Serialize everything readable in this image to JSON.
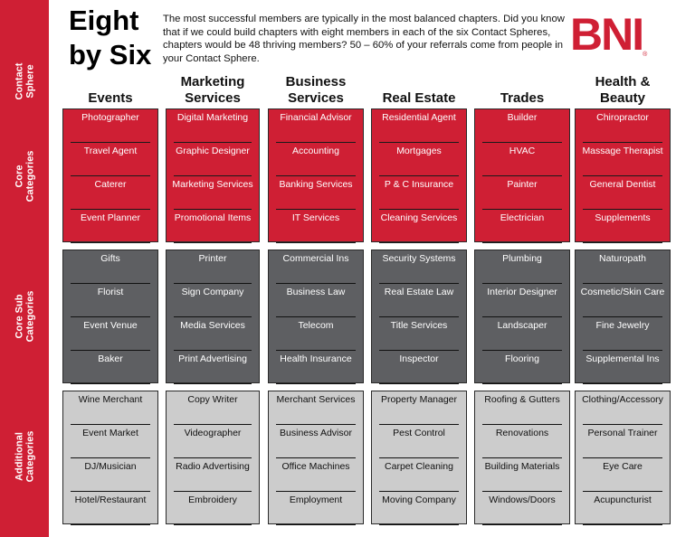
{
  "header": {
    "title_line1": "Eight",
    "title_line2": "by Six",
    "intro": "The most successful members are typically in the most balanced chapters. Did you know that if we could build chapters with eight members in each of the six Contact Spheres, chapters would be 48 thriving members? 50 – 60% of your referrals come from people in your Contact Sphere.",
    "logo": "BNI",
    "logo_mark": "®"
  },
  "colors": {
    "brand_red": "#cf1f34",
    "sub_gray": "#5e5f62",
    "additional_gray": "#cccccc"
  },
  "rows": {
    "contact_sphere": "Contact\nSphere",
    "core": "Core\nCategories",
    "sub": "Core Sub\nCategories",
    "additional": "Additional\nCategories"
  },
  "columns": [
    {
      "name": "Events",
      "core": [
        "Photographer",
        "Travel Agent",
        "Caterer",
        "Event Planner"
      ],
      "sub": [
        "Gifts",
        "Florist",
        "Event Venue",
        "Baker"
      ],
      "additional": [
        "Wine Merchant",
        "Event Market",
        "DJ/Musician",
        "Hotel/Restaurant"
      ]
    },
    {
      "name": "Marketing\nServices",
      "core": [
        "Digital Marketing",
        "Graphic Designer",
        "Marketing Services",
        "Promotional Items"
      ],
      "sub": [
        "Printer",
        "Sign Company",
        "Media Services",
        "Print Advertising"
      ],
      "additional": [
        "Copy Writer",
        "Videographer",
        "Radio Advertising",
        "Embroidery"
      ]
    },
    {
      "name": "Business\nServices",
      "core": [
        "Financial Advisor",
        "Accounting",
        "Banking Services",
        "IT Services"
      ],
      "sub": [
        "Commercial Ins",
        "Business Law",
        "Telecom",
        "Health Insurance"
      ],
      "additional": [
        "Merchant Services",
        "Business Advisor",
        "Office Machines",
        "Employment"
      ]
    },
    {
      "name": "Real Estate",
      "core": [
        "Residential Agent",
        "Mortgages",
        "P & C Insurance",
        "Cleaning Services"
      ],
      "sub": [
        "Security Systems",
        "Real Estate Law",
        "Title Services",
        "Inspector"
      ],
      "additional": [
        "Property Manager",
        "Pest Control",
        "Carpet Cleaning",
        "Moving Company"
      ]
    },
    {
      "name": "Trades",
      "core": [
        "Builder",
        "HVAC",
        "Painter",
        "Electrician"
      ],
      "sub": [
        "Plumbing",
        "Interior Designer",
        "Landscaper",
        "Flooring"
      ],
      "additional": [
        "Roofing & Gutters",
        "Renovations",
        "Building Materials",
        "Windows/Doors"
      ]
    },
    {
      "name": "Health &\nBeauty",
      "core": [
        "Chiropractor",
        "Massage Therapist",
        "General Dentist",
        "Supplements"
      ],
      "sub": [
        "Naturopath",
        "Cosmetic/Skin Care",
        "Fine Jewelry",
        "Supplemental Ins"
      ],
      "additional": [
        "Clothing/Accessory",
        "Personal Trainer",
        "Eye Care",
        "Acupuncturist"
      ]
    }
  ]
}
